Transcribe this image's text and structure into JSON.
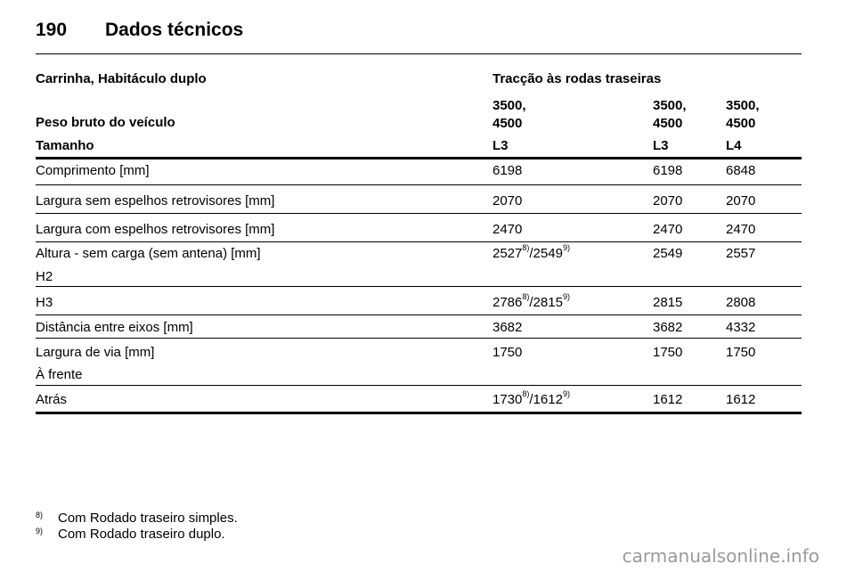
{
  "page": {
    "number": "190",
    "title": "Dados técnicos"
  },
  "table": {
    "vehicle_type": "Carrinha, Habitáculo duplo",
    "drive": "Tracção às rodas traseiras",
    "gross_weight_label": "Peso bruto do veículo",
    "gross_weights": [
      "3500,\n4500",
      "3500,\n4500",
      "3500,\n4500"
    ],
    "size_label": "Tamanho",
    "sizes": [
      "L3",
      "L3",
      "L4"
    ],
    "rows": [
      {
        "label": "Comprimento [mm]",
        "values": [
          "6198",
          "6198",
          "6848"
        ]
      },
      {
        "label": "Largura sem espelhos retrovisores [mm]",
        "values": [
          "2070",
          "2070",
          "2070"
        ]
      },
      {
        "label": "Largura com espelhos retrovisores [mm]",
        "values": [
          "2470",
          "2470",
          "2470"
        ]
      },
      {
        "label": "Altura - sem carga (sem antena) [mm]",
        "sublabel": "H2",
        "values": [
          {
            "a": "2527",
            "sa": "8)",
            "b": "/2549",
            "sb": "9)"
          },
          "2549",
          "2557"
        ]
      },
      {
        "label": "H3",
        "values": [
          {
            "a": "2786",
            "sa": "8)",
            "b": "/2815",
            "sb": "9)"
          },
          "2815",
          "2808"
        ]
      },
      {
        "label": "Distância entre eixos [mm]",
        "values": [
          "3682",
          "3682",
          "4332"
        ]
      },
      {
        "label": "Largura de via [mm]",
        "sublabel": "À frente",
        "values": [
          "1750",
          "1750",
          "1750"
        ]
      },
      {
        "label": "Atrás",
        "values": [
          {
            "a": "1730",
            "sa": "8)",
            "b": "/1612",
            "sb": "9)"
          },
          "1612",
          "1612"
        ]
      }
    ]
  },
  "footnotes": [
    {
      "mark": "8)",
      "text": "Com Rodado traseiro simples."
    },
    {
      "mark": "9)",
      "text": "Com Rodado traseiro duplo."
    }
  ],
  "watermark": "carmanualsonline.info"
}
